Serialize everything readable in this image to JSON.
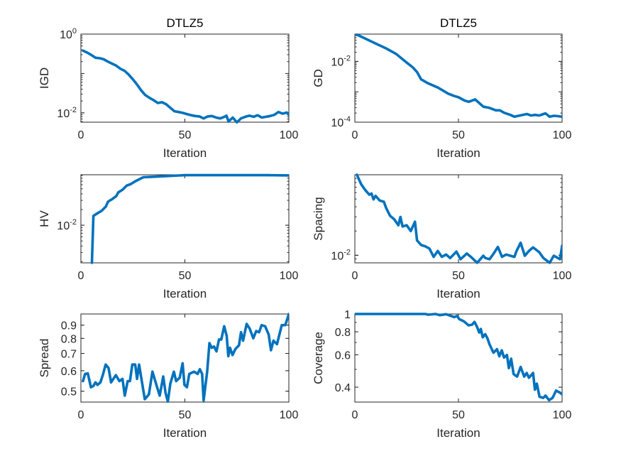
{
  "chart_data": [
    {
      "type": "line",
      "title": "DTLZ5",
      "xlabel": "Iteration",
      "ylabel": "IGD",
      "yscale": "log",
      "xlim": [
        0,
        100
      ],
      "ylim": [
        0.0058,
        1
      ],
      "grid": false,
      "xticks": [
        {
          "value": 0,
          "label": "0"
        },
        {
          "value": 50,
          "label": "50"
        },
        {
          "value": 100,
          "label": "100"
        }
      ],
      "yticks": [
        {
          "value": 1,
          "label": "10",
          "exp": "0"
        },
        {
          "value": 0.01,
          "label": "10",
          "exp": "-2"
        }
      ],
      "series": [
        {
          "name": "IGD",
          "color": "#0072BD",
          "x": [
            1,
            3,
            5,
            7,
            9,
            11,
            13,
            15,
            17,
            19,
            21,
            23,
            25,
            27,
            29,
            31,
            33,
            35,
            37,
            39,
            41,
            43,
            45,
            47,
            49,
            51,
            53,
            55,
            57,
            59,
            61,
            63,
            65,
            67,
            69,
            70,
            71,
            73,
            75,
            77,
            79,
            81,
            83,
            85,
            87,
            89,
            91,
            93,
            95,
            97,
            99,
            100
          ],
          "y": [
            0.38,
            0.339,
            0.295,
            0.251,
            0.245,
            0.229,
            0.2,
            0.178,
            0.158,
            0.132,
            0.117,
            0.0933,
            0.0708,
            0.0525,
            0.0372,
            0.0282,
            0.024,
            0.0209,
            0.0178,
            0.0186,
            0.0166,
            0.0135,
            0.011,
            0.0105,
            0.01,
            0.00933,
            0.00871,
            0.00832,
            0.00813,
            0.00724,
            0.00813,
            0.00832,
            0.00759,
            0.00724,
            0.00794,
            0.00851,
            0.00603,
            0.00759,
            0.00575,
            0.00724,
            0.00794,
            0.00851,
            0.00794,
            0.00871,
            0.00759,
            0.00794,
            0.00832,
            0.00891,
            0.0105,
            0.00955,
            0.0102,
            0.00891
          ]
        }
      ]
    },
    {
      "type": "line",
      "title": "DTLZ5",
      "xlabel": "Iteration",
      "ylabel": "GD",
      "yscale": "log",
      "xlim": [
        0,
        100
      ],
      "ylim": [
        0.0001,
        0.079
      ],
      "grid": false,
      "xticks": [
        {
          "value": 0,
          "label": "0"
        },
        {
          "value": 50,
          "label": "50"
        },
        {
          "value": 100,
          "label": "100"
        }
      ],
      "yticks": [
        {
          "value": 0.01,
          "label": "10",
          "exp": "-2"
        },
        {
          "value": 0.0001,
          "label": "10",
          "exp": "-4"
        }
      ],
      "series": [
        {
          "name": "GD",
          "color": "#0072BD",
          "x": [
            1,
            5,
            10,
            15,
            20,
            25,
            28,
            30,
            32,
            35,
            40,
            43,
            45,
            48,
            50,
            53,
            55,
            58,
            60,
            62,
            65,
            68,
            70,
            72,
            75,
            77,
            79,
            81,
            83,
            85,
            87,
            89,
            91,
            92,
            94,
            96,
            98,
            100
          ],
          "y": [
            0.0759,
            0.0562,
            0.0389,
            0.0269,
            0.0174,
            0.00912,
            0.00631,
            0.00447,
            0.00257,
            0.00195,
            0.00138,
            0.00105,
            0.000871,
            0.000724,
            0.000661,
            0.000513,
            0.000468,
            0.000562,
            0.000427,
            0.000324,
            0.000295,
            0.000245,
            0.000245,
            0.000204,
            0.000174,
            0.000151,
            0.000162,
            0.000174,
            0.000186,
            0.000166,
            0.000174,
            0.000166,
            0.000186,
            0.000195,
            0.000151,
            0.000162,
            0.000158,
            0.000151
          ]
        }
      ]
    },
    {
      "type": "line",
      "title": "",
      "xlabel": "Iteration",
      "ylabel": "HV",
      "yscale": "log",
      "xlim": [
        0,
        100
      ],
      "ylim": [
        0.0019,
        0.093
      ],
      "grid": false,
      "xticks": [
        {
          "value": 0,
          "label": "0"
        },
        {
          "value": 50,
          "label": "50"
        },
        {
          "value": 100,
          "label": "100"
        }
      ],
      "yticks": [
        {
          "value": 0.01,
          "label": "10",
          "exp": "-2"
        }
      ],
      "series": [
        {
          "name": "HV",
          "color": "#0072BD",
          "x": [
            5.3,
            6,
            8,
            10,
            12,
            13,
            15,
            17,
            18,
            20,
            22,
            24,
            26,
            28,
            30,
            35,
            40,
            50,
            60,
            70,
            80,
            90,
            100
          ],
          "y": [
            0.0019,
            0.0151,
            0.017,
            0.019,
            0.0229,
            0.0282,
            0.0316,
            0.0363,
            0.0427,
            0.0479,
            0.0575,
            0.0617,
            0.0692,
            0.0759,
            0.0832,
            0.0851,
            0.0871,
            0.0912,
            0.0912,
            0.0912,
            0.0912,
            0.0912,
            0.0905
          ]
        }
      ]
    },
    {
      "type": "line",
      "title": "",
      "xlabel": "Iteration",
      "ylabel": "Spacing",
      "yscale": "log",
      "xlim": [
        0,
        100
      ],
      "ylim": [
        0.00805,
        0.1
      ],
      "grid": false,
      "xticks": [
        {
          "value": 0,
          "label": "0"
        },
        {
          "value": 50,
          "label": "50"
        },
        {
          "value": 100,
          "label": "100"
        }
      ],
      "yticks": [
        {
          "value": 0.01,
          "label": "10",
          "exp": "-2"
        }
      ],
      "series": [
        {
          "name": "Spacing",
          "color": "#0072BD",
          "x": [
            1,
            3,
            5,
            7,
            8,
            9,
            10,
            12,
            14,
            15,
            17,
            19,
            21,
            22,
            23,
            25,
            27,
            29,
            30,
            32,
            34,
            36,
            38,
            40,
            42,
            44,
            46,
            49,
            51,
            54,
            56,
            59,
            62,
            63,
            65,
            67,
            69,
            71,
            73,
            75,
            77,
            78,
            80,
            82,
            84,
            86,
            89,
            91,
            94,
            96,
            99,
            100
          ],
          "y": [
            0.1,
            0.0764,
            0.0646,
            0.0565,
            0.0585,
            0.0494,
            0.0547,
            0.0478,
            0.0462,
            0.0391,
            0.0309,
            0.0279,
            0.0236,
            0.0299,
            0.0228,
            0.0236,
            0.02,
            0.0261,
            0.0153,
            0.0134,
            0.0129,
            0.0121,
            0.00954,
            0.0113,
            0.00954,
            0.0102,
            0.00923,
            0.0111,
            0.00892,
            0.0105,
            0.00954,
            0.00807,
            0.00987,
            0.00923,
            0.00892,
            0.0105,
            0.0127,
            0.00954,
            0.0102,
            0.00987,
            0.00954,
            0.0113,
            0.0143,
            0.00987,
            0.0113,
            0.0125,
            0.0109,
            0.00923,
            0.00807,
            0.00987,
            0.00892,
            0.0131
          ]
        }
      ]
    },
    {
      "type": "line",
      "title": "",
      "xlabel": "Iteration",
      "ylabel": "Spread",
      "yscale": "log",
      "xlim": [
        0,
        100
      ],
      "ylim": [
        0.454,
        0.994
      ],
      "grid": false,
      "xticks": [
        {
          "value": 0,
          "label": "0"
        },
        {
          "value": 50,
          "label": "50"
        },
        {
          "value": 100,
          "label": "100"
        }
      ],
      "yticks": [
        {
          "value": 0.5,
          "label": "0.5"
        },
        {
          "value": 0.6,
          "label": "0.6"
        },
        {
          "value": 0.7,
          "label": "0.7"
        },
        {
          "value": 0.8,
          "label": "0.8"
        },
        {
          "value": 0.9,
          "label": "0.9"
        }
      ],
      "series": [
        {
          "name": "Spread",
          "color": "#0072BD",
          "x": [
            1,
            2,
            3.3,
            4.8,
            6,
            7,
            8,
            9.4,
            10.5,
            11.9,
            13.3,
            14.5,
            16.8,
            18.5,
            20,
            21.1,
            22.5,
            23.6,
            24.7,
            26.1,
            27,
            28,
            29.3,
            30.7,
            32.7,
            34.4,
            36.1,
            37.9,
            39.6,
            40.7,
            41.8,
            43,
            44.7,
            45.8,
            47.5,
            48.9,
            49.8,
            51,
            52.1,
            54.4,
            56.1,
            57.2,
            58.3,
            59,
            60.7,
            61.8,
            62.9,
            64,
            65.2,
            66.4,
            67.5,
            68.9,
            70.1,
            70.9,
            71.7,
            72.9,
            74.3,
            76,
            77,
            78,
            79.7,
            81.2,
            82.9,
            84.3,
            85.7,
            86.9,
            88.6,
            90.3,
            91.4,
            92.6,
            94.3,
            96.6,
            98.3,
            100
          ],
          "y": [
            0.547,
            0.583,
            0.586,
            0.518,
            0.524,
            0.541,
            0.529,
            0.541,
            0.577,
            0.634,
            0.614,
            0.541,
            0.577,
            0.547,
            0.558,
            0.481,
            0.547,
            0.547,
            0.634,
            0.634,
            0.558,
            0.634,
            0.547,
            0.466,
            0.486,
            0.595,
            0.535,
            0.481,
            0.57,
            0.492,
            0.456,
            0.535,
            0.595,
            0.547,
            0.564,
            0.641,
            0.529,
            0.518,
            0.583,
            0.595,
            0.583,
            0.608,
            0.583,
            0.461,
            0.595,
            0.767,
            0.736,
            0.744,
            0.713,
            0.792,
            0.792,
            0.891,
            0.818,
            0.683,
            0.736,
            0.69,
            0.728,
            0.752,
            0.845,
            0.784,
            0.91,
            0.872,
            0.801,
            0.854,
            0.845,
            0.9,
            0.891,
            0.827,
            0.72,
            0.784,
            0.76,
            0.9,
            0.9,
            0.994
          ]
        }
      ]
    },
    {
      "type": "line",
      "title": "",
      "xlabel": "Iteration",
      "ylabel": "Coverage",
      "yscale": "log",
      "xlim": [
        0,
        100
      ],
      "ylim": [
        0.332,
        1
      ],
      "grid": false,
      "xticks": [
        {
          "value": 0,
          "label": "0"
        },
        {
          "value": 50,
          "label": "50"
        },
        {
          "value": 100,
          "label": "100"
        }
      ],
      "yticks": [
        {
          "value": 0.4,
          "label": "0.4"
        },
        {
          "value": 0.6,
          "label": "0.6"
        },
        {
          "value": 0.8,
          "label": "0.8"
        },
        {
          "value": 1,
          "label": "1"
        }
      ],
      "series": [
        {
          "name": "Coverage",
          "color": "#0072BD",
          "x": [
            0,
            34,
            35.4,
            38.9,
            41,
            44,
            48,
            49.4,
            50.3,
            52.6,
            54.9,
            56.6,
            57.7,
            58.9,
            60,
            60.8,
            61.7,
            62.9,
            64,
            65,
            66.9,
            68.6,
            69.7,
            70.9,
            72,
            73.4,
            74.3,
            75.4,
            76.6,
            78.3,
            80,
            81.7,
            82.9,
            84,
            86,
            86.9,
            87.8,
            89.1,
            90.9,
            92,
            93.7,
            95.4,
            97.1,
            98.9,
            100
          ],
          "y": [
            1,
            1,
            0.991,
            1,
            0.985,
            0.997,
            0.962,
            0.976,
            0.939,
            0.912,
            0.867,
            0.875,
            0.906,
            0.854,
            0.793,
            0.829,
            0.747,
            0.777,
            0.736,
            0.683,
            0.616,
            0.644,
            0.589,
            0.634,
            0.58,
            0.598,
            0.508,
            0.571,
            0.471,
            0.457,
            0.515,
            0.457,
            0.478,
            0.45,
            0.478,
            0.388,
            0.418,
            0.355,
            0.35,
            0.36,
            0.34,
            0.35,
            0.383,
            0.374,
            0.366
          ]
        }
      ]
    }
  ]
}
